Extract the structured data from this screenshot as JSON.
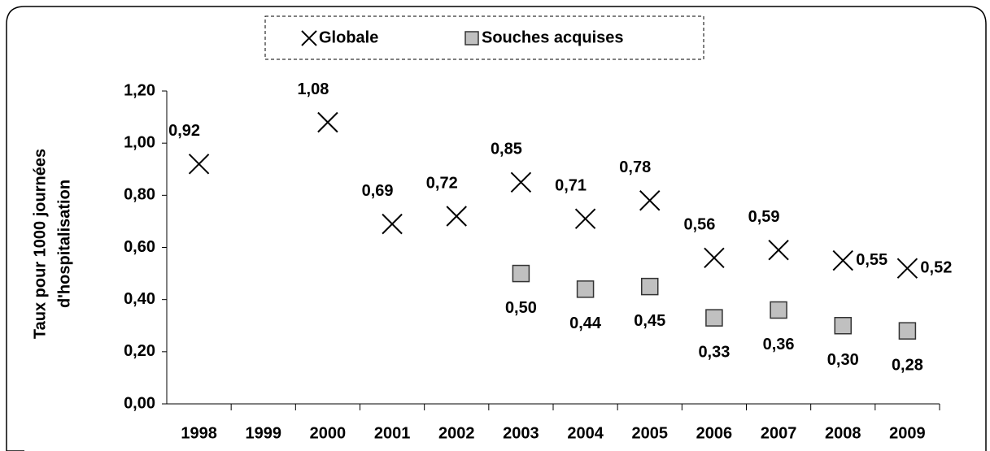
{
  "chart_data": {
    "type": "scatter",
    "ylabel": [
      "Taux pour 1000 journées",
      "d'hospitalisation"
    ],
    "categories": [
      "1998",
      "1999",
      "2000",
      "2001",
      "2002",
      "2003",
      "2004",
      "2005",
      "2006",
      "2007",
      "2008",
      "2009"
    ],
    "series": [
      {
        "name": "Globale",
        "marker": "x",
        "color": "#000000",
        "values": [
          0.92,
          null,
          1.08,
          0.69,
          0.72,
          0.85,
          0.71,
          0.78,
          0.56,
          0.59,
          0.55,
          0.52
        ],
        "value_labels": [
          "0,92",
          null,
          "1,08",
          "0,69",
          "0,72",
          "0,85",
          "0,71",
          "0,78",
          "0,56",
          "0,59",
          "0,55",
          "0,52"
        ]
      },
      {
        "name": "Souches acquises",
        "marker": "square",
        "color": "#c0c0c0",
        "values": [
          null,
          null,
          null,
          null,
          null,
          0.5,
          0.44,
          0.45,
          0.33,
          0.36,
          0.3,
          0.28
        ],
        "value_labels": [
          null,
          null,
          null,
          null,
          null,
          "0,50",
          "0,44",
          "0,45",
          "0,33",
          "0,36",
          "0,30",
          "0,28"
        ]
      }
    ],
    "ylim": [
      0,
      1.2
    ],
    "yticks": [
      {
        "value": 0,
        "label": "0,00"
      },
      {
        "value": 0.2,
        "label": "0,20"
      },
      {
        "value": 0.4,
        "label": "0,40"
      },
      {
        "value": 0.6,
        "label": "0,60"
      },
      {
        "value": 0.8,
        "label": "0,80"
      },
      {
        "value": 1.0,
        "label": "1,00"
      },
      {
        "value": 1.2,
        "label": "1,20"
      }
    ],
    "legend": "top"
  }
}
